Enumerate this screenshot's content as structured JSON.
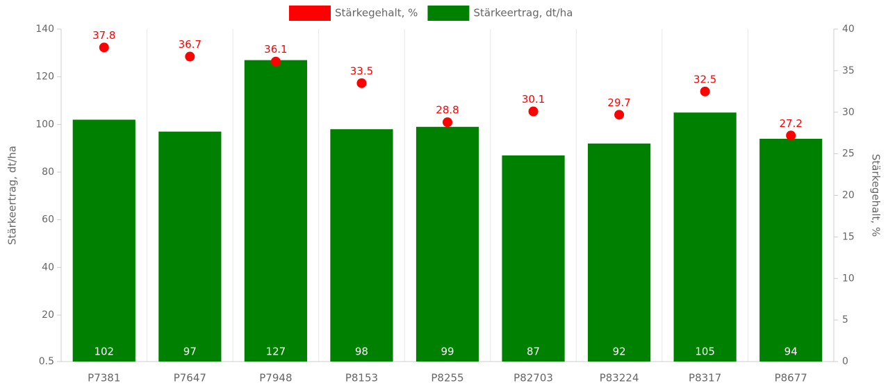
{
  "chart_data": {
    "type": "bar",
    "categories": [
      "P7381",
      "P7647",
      "P7948",
      "P8153",
      "P8255",
      "P82703",
      "P83224",
      "P8317",
      "P8677"
    ],
    "series": [
      {
        "name": "Stärkegehalt, %",
        "color": "#ff0000",
        "type": "scatter",
        "axis": "y2",
        "values": [
          37.8,
          36.7,
          36.1,
          33.5,
          28.8,
          30.1,
          29.7,
          32.5,
          27.2
        ]
      },
      {
        "name": "Stärkeertrag, dt/ha",
        "color": "#008000",
        "type": "bar",
        "axis": "y",
        "values": [
          102,
          97,
          127,
          98,
          99,
          87,
          92,
          105,
          94
        ]
      }
    ],
    "ylabel": "Stärkeertrag, dt/ha",
    "y2label": "Stärkegehalt, %",
    "ylim": [
      0.5,
      140
    ],
    "yticks": [
      0.5,
      20,
      40,
      60,
      80,
      100,
      120,
      140
    ],
    "y2lim": [
      0,
      40
    ],
    "y2ticks": [
      0,
      5,
      10,
      15,
      20,
      25,
      30,
      35,
      40
    ],
    "grid": true,
    "legend": "top"
  }
}
